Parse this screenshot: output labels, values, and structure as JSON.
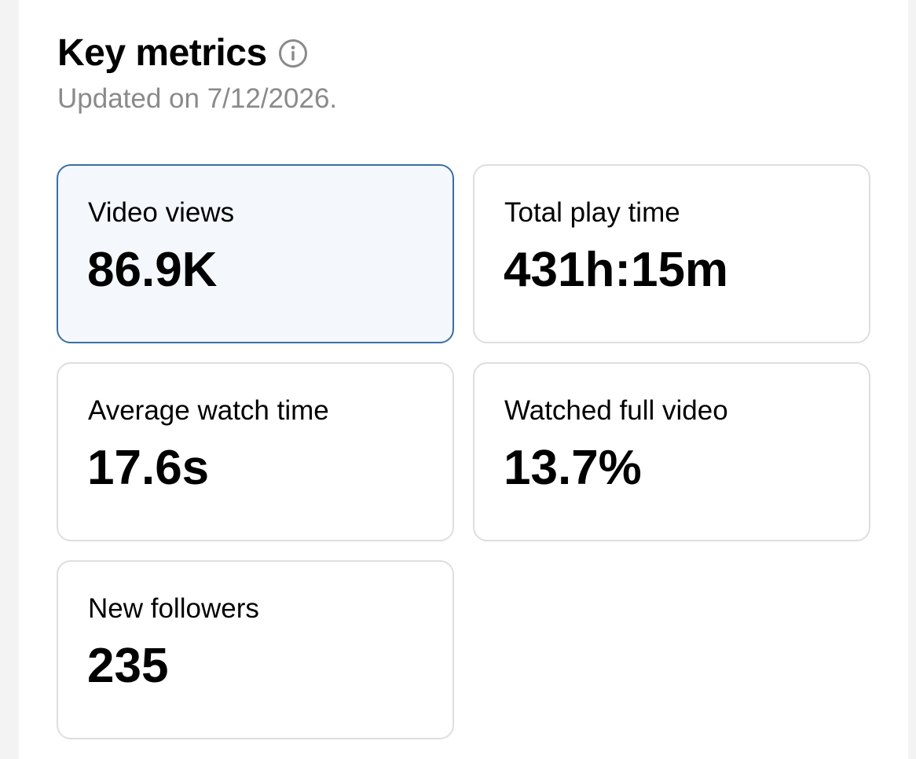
{
  "header": {
    "title": "Key metrics",
    "info_icon": "info-circle-icon",
    "updated": "Updated on 7/12/2026."
  },
  "colors": {
    "background": "#f3f3f4",
    "panel": "#ffffff",
    "selected_card_bg": "#f4f8fd",
    "selected_card_border": "#3a6ea5",
    "card_border": "#dedede",
    "subtitle": "#8a8a8c"
  },
  "metrics": [
    {
      "label": "Video views",
      "value": "86.9K",
      "selected": true
    },
    {
      "label": "Total play time",
      "value": "431h:15m",
      "selected": false
    },
    {
      "label": "Average watch time",
      "value": "17.6s",
      "selected": false
    },
    {
      "label": "Watched full video",
      "value": "13.7%",
      "selected": false
    },
    {
      "label": "New followers",
      "value": "235",
      "selected": false
    }
  ]
}
